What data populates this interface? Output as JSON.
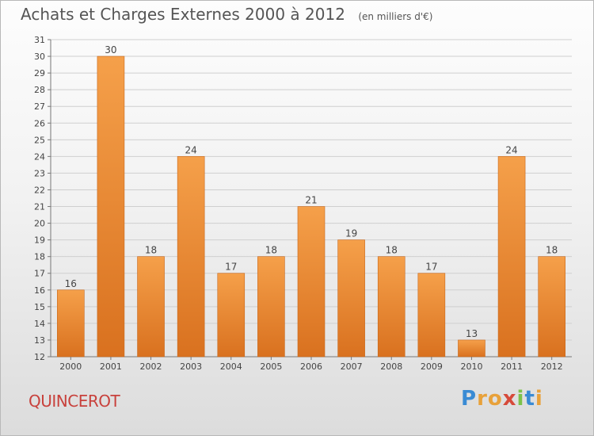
{
  "header": {
    "title": "Achats et Charges Externes 2000 à 2012",
    "subtitle": "(en milliers d'€)"
  },
  "footer": {
    "commune": "QUINCEROT",
    "logo": {
      "letters": [
        "P",
        "r",
        "o",
        "x",
        "i",
        "t",
        "i"
      ],
      "colors": [
        "#3a8bd4",
        "#e8a13a",
        "#e8a13a",
        "#d64a3a",
        "#7cc24a",
        "#3a8bd4",
        "#e8a13a"
      ]
    }
  },
  "colors": {
    "bar": "#f5a04a",
    "bar_dark": "#d9711f",
    "grid": "#cfcfcf"
  },
  "chart_data": {
    "type": "bar",
    "title": "Achats et Charges Externes 2000 à 2012",
    "categories": [
      "2000",
      "2001",
      "2002",
      "2003",
      "2004",
      "2005",
      "2006",
      "2007",
      "2008",
      "2009",
      "2010",
      "2011",
      "2012"
    ],
    "values": [
      16,
      30,
      18,
      24,
      17,
      18,
      21,
      19,
      18,
      17,
      13,
      24,
      18
    ],
    "ylim": [
      12,
      31
    ],
    "yticks": [
      12,
      13,
      14,
      15,
      16,
      17,
      18,
      19,
      20,
      21,
      22,
      23,
      24,
      25,
      26,
      27,
      28,
      29,
      30,
      31
    ],
    "grid": true,
    "data_labels": true
  }
}
